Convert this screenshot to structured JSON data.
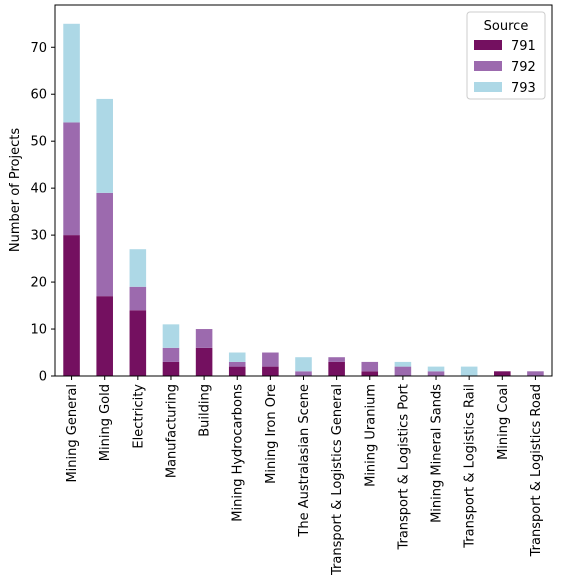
{
  "chart_data": {
    "type": "bar",
    "stacked": true,
    "title": "",
    "xlabel": "",
    "ylabel": "Number of Projects",
    "ylim": [
      0,
      79
    ],
    "yticks": [
      0,
      10,
      20,
      30,
      40,
      50,
      60,
      70
    ],
    "grid": false,
    "legend": {
      "title": "Source",
      "placement": "top-right"
    },
    "categories": [
      "Mining General",
      "Mining Gold",
      "Electricity",
      "Manufacturing",
      "Building",
      "Mining Hydrocarbons",
      "Mining Iron Ore",
      "The Australasian Scene",
      "Transport & Logistics General",
      "Mining Uranium",
      "Transport & Logistics Port",
      "Mining Mineral Sands",
      "Transport & Logistics Rail",
      "Mining Coal",
      "Transport & Logistics Road"
    ],
    "series": [
      {
        "name": "791",
        "color": "#741060",
        "values": [
          30,
          17,
          14,
          3,
          6,
          2,
          2,
          0,
          3,
          1,
          0,
          0,
          0,
          1,
          0
        ]
      },
      {
        "name": "792",
        "color": "#9c6aae",
        "values": [
          24,
          22,
          5,
          3,
          4,
          1,
          3,
          1,
          1,
          2,
          2,
          1,
          0,
          0,
          1
        ]
      },
      {
        "name": "793",
        "color": "#add8e6",
        "values": [
          21,
          20,
          8,
          5,
          0,
          2,
          0,
          3,
          0,
          0,
          1,
          1,
          2,
          0,
          0
        ]
      }
    ]
  }
}
